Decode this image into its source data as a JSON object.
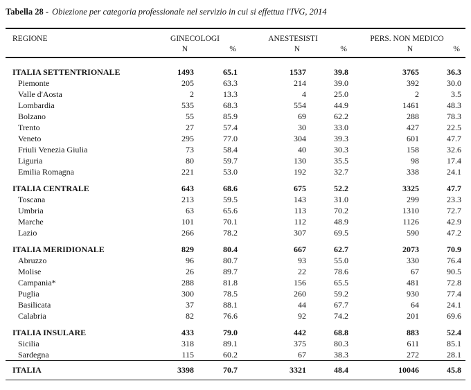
{
  "title": {
    "label": "Tabella 28 -",
    "text": "Obiezione per categoria professionale nel servizio in cui si effettua l'IVG, 2014"
  },
  "table": {
    "columns": {
      "region": "REGIONE",
      "groups": [
        "GINECOLOGI",
        "ANESTESISTI",
        "PERS. NON MEDICO"
      ],
      "sub_n": "N",
      "sub_pct": "%"
    },
    "sections": [
      {
        "header": {
          "region": "ITALIA SETTENTRIONALE",
          "values": [
            "1493",
            "65.1",
            "1537",
            "39.8",
            "3765",
            "36.3"
          ]
        },
        "rows": [
          {
            "region": "Piemonte",
            "values": [
              "205",
              "63.3",
              "214",
              "39.0",
              "392",
              "30.0"
            ]
          },
          {
            "region": "Valle d'Aosta",
            "values": [
              "2",
              "13.3",
              "4",
              "25.0",
              "2",
              "3.5"
            ]
          },
          {
            "region": "Lombardia",
            "values": [
              "535",
              "68.3",
              "554",
              "44.9",
              "1461",
              "48.3"
            ]
          },
          {
            "region": "Bolzano",
            "values": [
              "55",
              "85.9",
              "69",
              "62.2",
              "288",
              "78.3"
            ]
          },
          {
            "region": "Trento",
            "values": [
              "27",
              "57.4",
              "30",
              "33.0",
              "427",
              "22.5"
            ]
          },
          {
            "region": "Veneto",
            "values": [
              "295",
              "77.0",
              "304",
              "39.3",
              "601",
              "47.7"
            ]
          },
          {
            "region": "Friuli Venezia Giulia",
            "values": [
              "73",
              "58.4",
              "40",
              "30.3",
              "158",
              "32.6"
            ]
          },
          {
            "region": "Liguria",
            "values": [
              "80",
              "59.7",
              "130",
              "35.5",
              "98",
              "17.4"
            ]
          },
          {
            "region": "Emilia Romagna",
            "values": [
              "221",
              "53.0",
              "192",
              "32.7",
              "338",
              "24.1"
            ]
          }
        ]
      },
      {
        "header": {
          "region": "ITALIA CENTRALE",
          "values": [
            "643",
            "68.6",
            "675",
            "52.2",
            "3325",
            "47.7"
          ]
        },
        "rows": [
          {
            "region": "Toscana",
            "values": [
              "213",
              "59.5",
              "143",
              "31.0",
              "299",
              "23.3"
            ]
          },
          {
            "region": "Umbria",
            "values": [
              "63",
              "65.6",
              "113",
              "70.2",
              "1310",
              "72.7"
            ]
          },
          {
            "region": "Marche",
            "values": [
              "101",
              "70.1",
              "112",
              "48.9",
              "1126",
              "42.9"
            ]
          },
          {
            "region": "Lazio",
            "values": [
              "266",
              "78.2",
              "307",
              "69.5",
              "590",
              "47.2"
            ]
          }
        ]
      },
      {
        "header": {
          "region": "ITALIA MERIDIONALE",
          "values": [
            "829",
            "80.4",
            "667",
            "62.7",
            "2073",
            "70.9"
          ]
        },
        "rows": [
          {
            "region": "Abruzzo",
            "values": [
              "96",
              "80.7",
              "93",
              "55.0",
              "330",
              "76.4"
            ]
          },
          {
            "region": "Molise",
            "values": [
              "26",
              "89.7",
              "22",
              "78.6",
              "67",
              "90.5"
            ]
          },
          {
            "region": "Campania*",
            "values": [
              "288",
              "81.8",
              "156",
              "65.5",
              "481",
              "72.8"
            ]
          },
          {
            "region": "Puglia",
            "values": [
              "300",
              "78.5",
              "260",
              "59.2",
              "930",
              "77.4"
            ]
          },
          {
            "region": "Basilicata",
            "values": [
              "37",
              "88.1",
              "44",
              "67.7",
              "64",
              "24.1"
            ]
          },
          {
            "region": "Calabria",
            "values": [
              "82",
              "76.6",
              "92",
              "74.2",
              "201",
              "69.6"
            ]
          }
        ]
      },
      {
        "header": {
          "region": "ITALIA INSULARE",
          "values": [
            "433",
            "79.0",
            "442",
            "68.8",
            "883",
            "52.4"
          ]
        },
        "rows": [
          {
            "region": "Sicilia",
            "values": [
              "318",
              "89.1",
              "375",
              "80.3",
              "611",
              "85.1"
            ]
          },
          {
            "region": "Sardegna",
            "values": [
              "115",
              "60.2",
              "67",
              "38.3",
              "272",
              "28.1"
            ]
          }
        ]
      }
    ],
    "total": {
      "region": "ITALIA",
      "values": [
        "3398",
        "70.7",
        "3321",
        "48.4",
        "10046",
        "45.8"
      ]
    }
  }
}
